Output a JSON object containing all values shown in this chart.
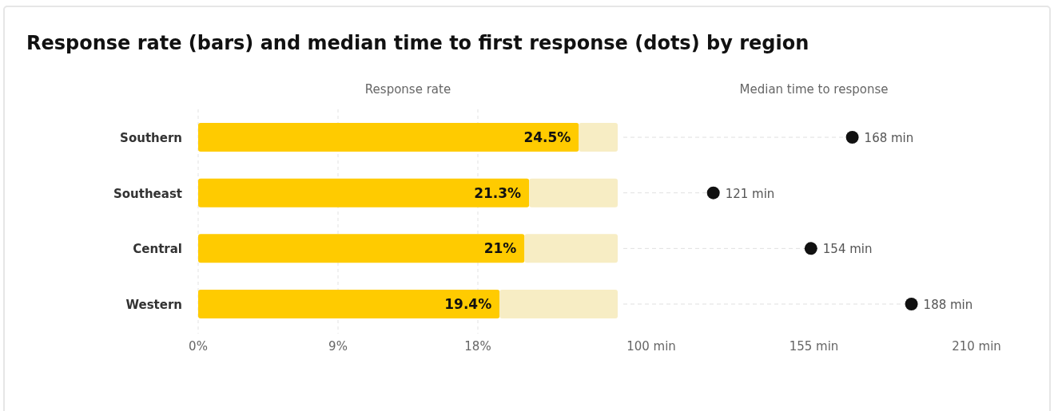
{
  "chart_data": [
    {
      "type": "bar",
      "title": "Response rate (bars) and median time to first response (dots) by region",
      "subtitle": "Response rate",
      "orientation": "horizontal",
      "categories": [
        "Southern",
        "Southeast",
        "Central",
        "Western"
      ],
      "stacked": true,
      "series": [
        {
          "color": "#ffcb00",
          "values": [
            24.5,
            21.3,
            21,
            19.4
          ],
          "value_labels": [
            "24.5%",
            "21.3%",
            "21%",
            "19.4%"
          ]
        },
        {
          "color": "#f7edc4",
          "values": [
            2.5,
            5.7,
            6,
            7.6
          ]
        }
      ],
      "xlim": [
        0,
        27
      ],
      "xticks": [
        {
          "value": 0,
          "label": "0%"
        },
        {
          "value": 9,
          "label": "9%"
        },
        {
          "value": 18,
          "label": "18%"
        }
      ],
      "grid": "x"
    },
    {
      "type": "lollipop",
      "subtitle": "Median time to response",
      "orientation": "horizontal",
      "categories": [
        null,
        null,
        null,
        null
      ],
      "values": [
        168,
        121,
        154,
        188
      ],
      "value_labels": [
        "168 min",
        "121 min",
        "154 min",
        "188 min"
      ],
      "color": "#111111",
      "xlim": [
        100,
        210
      ],
      "xticks": [
        {
          "value": 100,
          "label": "100 min"
        },
        {
          "value": 155,
          "label": "155 min"
        },
        {
          "value": 210,
          "label": "210 min"
        }
      ],
      "tick_labels": "x",
      "marker": "circle",
      "line_style": "dashed"
    }
  ]
}
